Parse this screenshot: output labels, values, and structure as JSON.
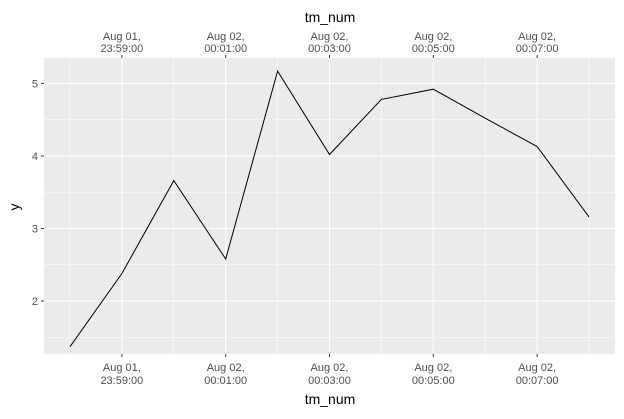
{
  "chart_data": {
    "type": "line",
    "x_axis_title_top": "tm_num",
    "x_axis_title_bottom": "tm_num",
    "y_axis_title": "y",
    "x_ticks": [
      {
        "line1": "Aug 01,",
        "line2": "23:59:00",
        "minutes": -1
      },
      {
        "line1": "Aug 02,",
        "line2": "00:01:00",
        "minutes": 1
      },
      {
        "line1": "Aug 02,",
        "line2": "00:03:00",
        "minutes": 3
      },
      {
        "line1": "Aug 02,",
        "line2": "00:05:00",
        "minutes": 5
      },
      {
        "line1": "Aug 02,",
        "line2": "00:07:00",
        "minutes": 7
      }
    ],
    "y_ticks": [
      "2",
      "3",
      "4",
      "5"
    ],
    "x_values_minutes": [
      -2,
      -1,
      0,
      1,
      2,
      3,
      4,
      5,
      6,
      7,
      8
    ],
    "y": [
      1.37,
      2.38,
      3.66,
      2.58,
      5.17,
      4.02,
      4.78,
      4.92,
      4.52,
      4.13,
      3.16
    ],
    "xlim_minutes": [
      -2.5,
      8.5
    ],
    "ylim": [
      1.27,
      5.35
    ],
    "grid": true,
    "line_color": "#000000",
    "panel_background": "#ebebeb",
    "grid_color": "#ffffff"
  }
}
